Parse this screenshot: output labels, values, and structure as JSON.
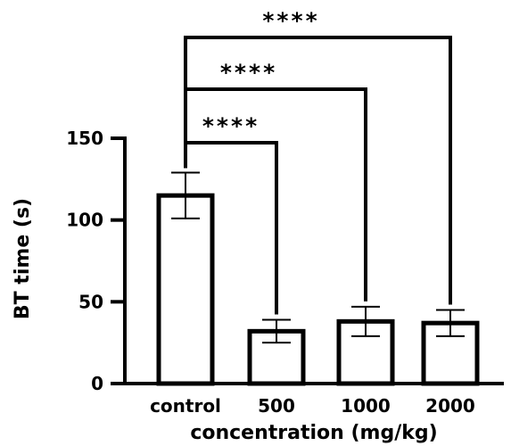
{
  "chart_data": {
    "type": "bar",
    "categories": [
      "control",
      "500",
      "1000",
      "2000"
    ],
    "values": [
      115,
      32,
      38,
      37
    ],
    "error": [
      14,
      7,
      9,
      8
    ],
    "ylim": [
      0,
      150
    ],
    "yticks": [
      0,
      50,
      100,
      150
    ],
    "xlabel": "concentration (mg/kg)",
    "ylabel": "BT time (s)",
    "bar_fill": "#ffffff",
    "bar_stroke": "#000000",
    "grid": false,
    "comparisons": [
      {
        "from": "control",
        "to": "500",
        "label": "****"
      },
      {
        "from": "control",
        "to": "1000",
        "label": "****"
      },
      {
        "from": "control",
        "to": "2000",
        "label": "****"
      }
    ]
  }
}
